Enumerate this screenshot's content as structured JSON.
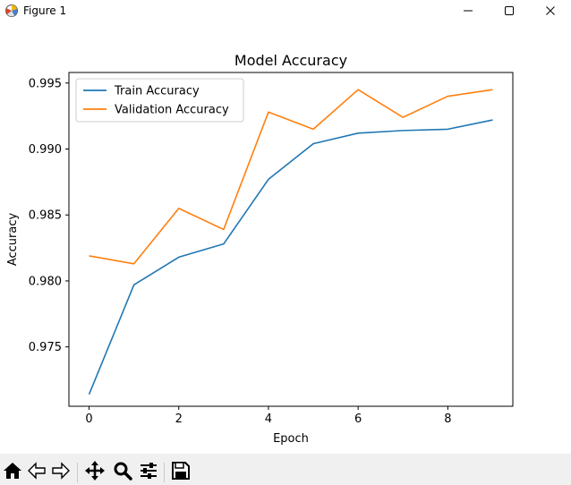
{
  "window": {
    "title": "Figure 1",
    "icons": {
      "app": "matplotlib-figure-icon",
      "minimize": "minimize-icon",
      "maximize": "maximize-icon",
      "close": "close-icon"
    }
  },
  "toolbar": {
    "buttons": [
      {
        "name": "home-button",
        "icon": "home-icon"
      },
      {
        "name": "back-button",
        "icon": "back-arrow-icon"
      },
      {
        "name": "forward-button",
        "icon": "forward-arrow-icon"
      },
      {
        "name": "pan-button",
        "icon": "pan-move-icon"
      },
      {
        "name": "zoom-button",
        "icon": "zoom-magnifier-icon"
      },
      {
        "name": "configure-subplots-button",
        "icon": "sliders-icon"
      },
      {
        "name": "save-button",
        "icon": "save-floppy-icon"
      }
    ]
  },
  "chart_data": {
    "type": "line",
    "title": "Model Accuracy",
    "xlabel": "Epoch",
    "ylabel": "Accuracy",
    "x": [
      0,
      1,
      2,
      3,
      4,
      5,
      6,
      7,
      8,
      9
    ],
    "xticks": [
      0,
      2,
      4,
      6,
      8
    ],
    "xtick_labels": [
      "0",
      "2",
      "4",
      "6",
      "8"
    ],
    "yticks": [
      0.975,
      0.98,
      0.985,
      0.99,
      0.995
    ],
    "ytick_labels": [
      "0.975",
      "0.980",
      "0.985",
      "0.990",
      "0.995"
    ],
    "xlim": [
      -0.45,
      9.45
    ],
    "ylim": [
      0.9705,
      0.9958
    ],
    "grid": false,
    "legend": "upper-left",
    "series": [
      {
        "name": "Train Accuracy",
        "color": "#1f77b4",
        "values": [
          0.9714,
          0.9797,
          0.9818,
          0.9828,
          0.9877,
          0.9904,
          0.9912,
          0.9914,
          0.9915,
          0.9922
        ]
      },
      {
        "name": "Validation Accuracy",
        "color": "#ff7f0e",
        "values": [
          0.9819,
          0.9813,
          0.9855,
          0.9839,
          0.9928,
          0.9915,
          0.9945,
          0.9924,
          0.994,
          0.9945
        ]
      }
    ]
  }
}
